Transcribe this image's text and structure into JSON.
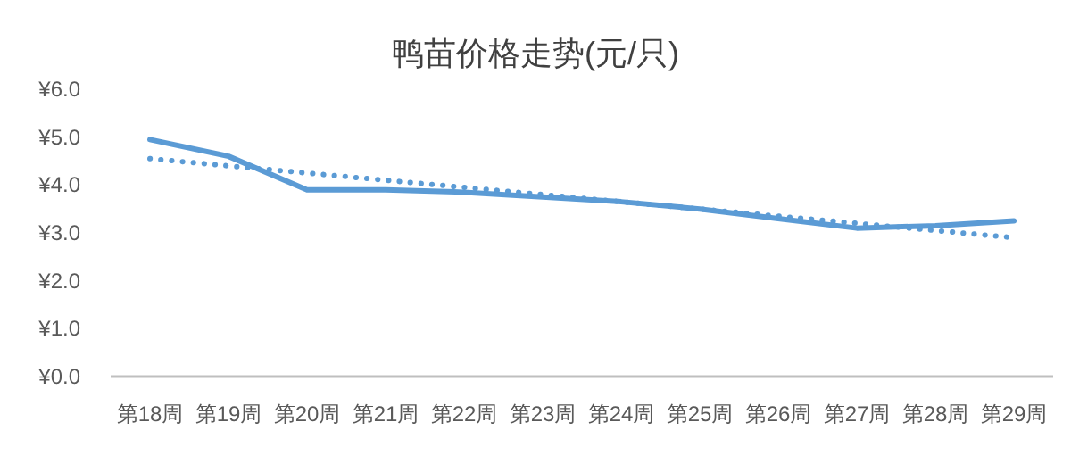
{
  "chart_data": {
    "type": "line",
    "title": "鸭苗价格走势(元/只)",
    "categories": [
      "第18周",
      "第19周",
      "第20周",
      "第21周",
      "第22周",
      "第23周",
      "第24周",
      "第25周",
      "第26周",
      "第27周",
      "第28周",
      "第29周"
    ],
    "series": [
      {
        "color": "#5b9bd5",
        "line_style": "solid",
        "values": [
          4.95,
          4.6,
          3.9,
          3.9,
          3.85,
          3.75,
          3.65,
          3.5,
          3.3,
          3.1,
          3.15,
          3.25
        ]
      },
      {
        "color": "#5b9bd5",
        "line_style": "dotted",
        "values": [
          4.55,
          4.4,
          4.25,
          4.1,
          3.95,
          3.8,
          3.65,
          3.5,
          3.35,
          3.2,
          3.05,
          2.9
        ]
      }
    ],
    "ylim": [
      0,
      6
    ],
    "yticks": [
      {
        "value": 0,
        "label": "¥0.0"
      },
      {
        "value": 1,
        "label": "¥1.0"
      },
      {
        "value": 2,
        "label": "¥2.0"
      },
      {
        "value": 3,
        "label": "¥3.0"
      },
      {
        "value": 4,
        "label": "¥4.0"
      },
      {
        "value": 5,
        "label": "¥5.0"
      },
      {
        "value": 6,
        "label": "¥6.0"
      }
    ],
    "grid": false,
    "marker": "none"
  }
}
